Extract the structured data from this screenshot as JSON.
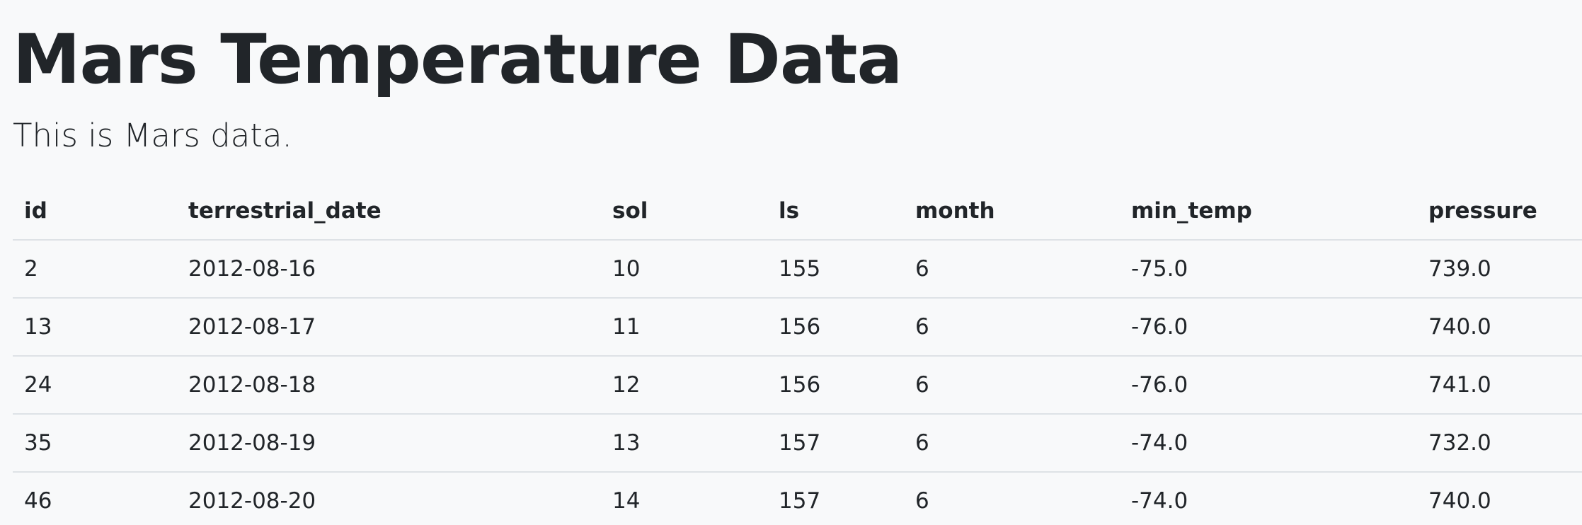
{
  "page": {
    "title": "Mars Temperature Data",
    "subtitle": "This is Mars data."
  },
  "table": {
    "columns": [
      "id",
      "terrestrial_date",
      "sol",
      "ls",
      "month",
      "min_temp",
      "pressure"
    ],
    "rows": [
      [
        "2",
        "2012-08-16",
        "10",
        "155",
        "6",
        "-75.0",
        "739.0"
      ],
      [
        "13",
        "2012-08-17",
        "11",
        "156",
        "6",
        "-76.0",
        "740.0"
      ],
      [
        "24",
        "2012-08-18",
        "12",
        "156",
        "6",
        "-76.0",
        "741.0"
      ],
      [
        "35",
        "2012-08-19",
        "13",
        "157",
        "6",
        "-74.0",
        "732.0"
      ],
      [
        "46",
        "2012-08-20",
        "14",
        "157",
        "6",
        "-74.0",
        "740.0"
      ]
    ]
  },
  "colors": {
    "background": "#f8f9fa",
    "text": "#212529",
    "border": "#dee2e6"
  }
}
